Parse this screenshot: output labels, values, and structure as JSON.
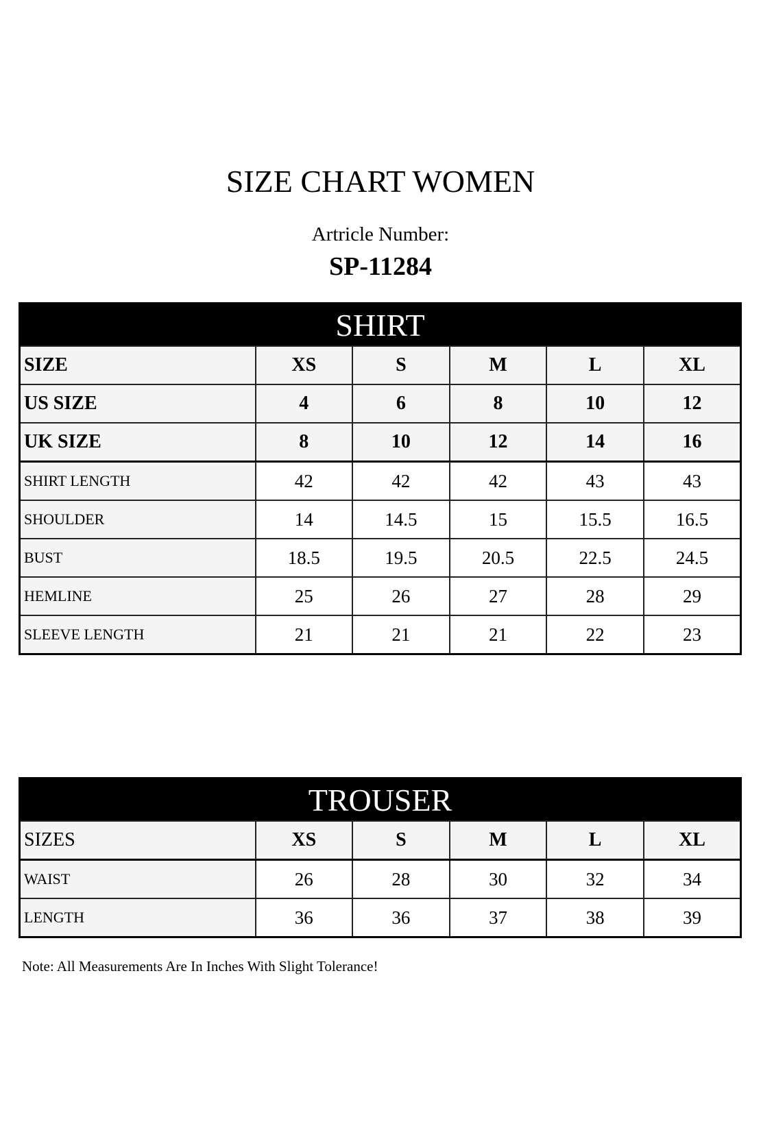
{
  "title": "SIZE CHART WOMEN",
  "article_label": "Artricle Number:",
  "article_number": "SP-11284",
  "shirt": {
    "heading": "SHIRT",
    "size_rows": [
      {
        "label": "SIZE",
        "values": [
          "XS",
          "S",
          "M",
          "L",
          "XL"
        ]
      },
      {
        "label": "US SIZE",
        "values": [
          "4",
          "6",
          "8",
          "10",
          "12"
        ]
      },
      {
        "label": "UK SIZE",
        "values": [
          "8",
          "10",
          "12",
          "14",
          "16"
        ]
      }
    ],
    "measure_rows": [
      {
        "label": "SHIRT LENGTH",
        "values": [
          "42",
          "42",
          "42",
          "43",
          "43"
        ]
      },
      {
        "label": "SHOULDER",
        "values": [
          "14",
          "14.5",
          "15",
          "15.5",
          "16.5"
        ]
      },
      {
        "label": "BUST",
        "values": [
          "18.5",
          "19.5",
          "20.5",
          "22.5",
          "24.5"
        ]
      },
      {
        "label": "HEMLINE",
        "values": [
          "25",
          "26",
          "27",
          "28",
          "29"
        ]
      },
      {
        "label": "SLEEVE LENGTH",
        "values": [
          "21",
          "21",
          "21",
          "22",
          "23"
        ]
      }
    ]
  },
  "trouser": {
    "heading": "TROUSER",
    "size_row": {
      "label": "SIZES",
      "values": [
        "XS",
        "S",
        "M",
        "L",
        "XL"
      ]
    },
    "measure_rows": [
      {
        "label": "WAIST",
        "values": [
          "26",
          "28",
          "30",
          "32",
          "34"
        ]
      },
      {
        "label": "LENGTH",
        "values": [
          "36",
          "36",
          "37",
          "38",
          "39"
        ]
      }
    ]
  },
  "note": "Note: All Measurements Are In Inches With Slight Tolerance!"
}
